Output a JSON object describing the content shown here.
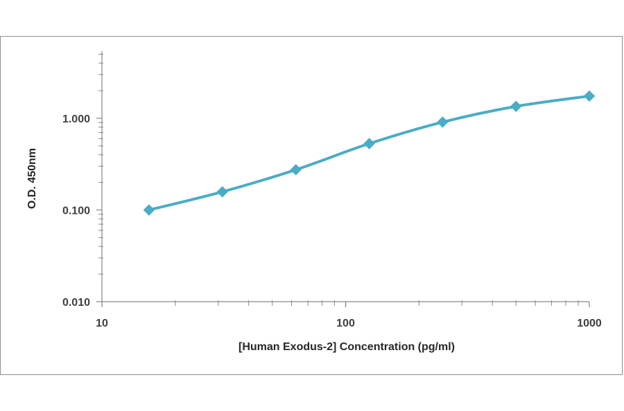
{
  "chart_data": {
    "type": "line",
    "title": "",
    "xlabel": "[Human Exodus-2]  Concentration (pg/ml)",
    "ylabel": "O.D. 450nm",
    "x_scale": "log",
    "y_scale": "log",
    "xlim": [
      10,
      1000
    ],
    "ylim": [
      0.01,
      5
    ],
    "x_tick_labels": [
      "10",
      "100",
      "1000"
    ],
    "y_tick_labels": [
      "0.010",
      "0.100",
      "1.000"
    ],
    "grid": false,
    "legend": "none",
    "series": [
      {
        "color": "#4bacc6",
        "marker": "diamond",
        "x": [
          15.6,
          31.2,
          62.5,
          125,
          250,
          500,
          1000
        ],
        "y": [
          0.1,
          0.158,
          0.275,
          0.53,
          0.91,
          1.35,
          1.75
        ]
      }
    ]
  }
}
